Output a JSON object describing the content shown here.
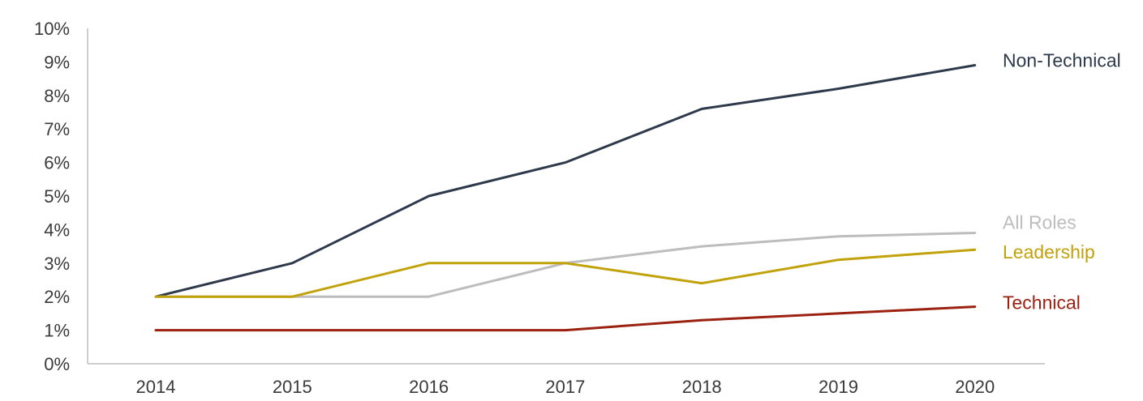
{
  "chart_data": {
    "type": "line",
    "title": "",
    "xlabel": "",
    "ylabel": "",
    "x": [
      "2014",
      "2015",
      "2016",
      "2017",
      "2018",
      "2019",
      "2020"
    ],
    "ylim": [
      0,
      10
    ],
    "y_ticks": [
      "0%",
      "1%",
      "2%",
      "3%",
      "4%",
      "5%",
      "6%",
      "7%",
      "8%",
      "9%",
      "10%"
    ],
    "grid": false,
    "legend": "inline labels at line ends (right)",
    "series": [
      {
        "name": "Non-Technical",
        "color": "#2e3a4b",
        "values": [
          2,
          3,
          5,
          6,
          7.6,
          8.2,
          8.9
        ]
      },
      {
        "name": "All Roles",
        "color": "#bdbdbd",
        "values": [
          2,
          2,
          2,
          3,
          3.5,
          3.8,
          3.9
        ]
      },
      {
        "name": "Leadership",
        "color": "#c2a20b",
        "values": [
          2,
          2,
          3,
          3,
          2.4,
          3.1,
          3.4
        ]
      },
      {
        "name": "Technical",
        "color": "#9b2111",
        "values": [
          1,
          1,
          1,
          1,
          1.3,
          1.5,
          1.7
        ]
      }
    ]
  }
}
